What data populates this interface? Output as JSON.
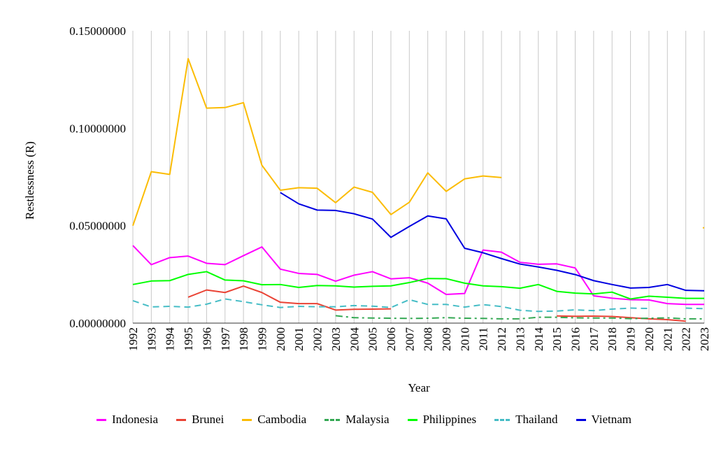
{
  "chart_data": {
    "type": "line",
    "title": "",
    "xlabel": "Year",
    "ylabel": "Restlessness (R)",
    "ylim": [
      0,
      0.15
    ],
    "yticks": [
      "0.00000000",
      "0.05000000",
      "0.10000000",
      "0.15000000"
    ],
    "y_tick_values": [
      0,
      0.05,
      0.1,
      0.15
    ],
    "grid": "vertical",
    "legend_position": "bottom",
    "x": [
      "1992",
      "1993",
      "1994",
      "1995",
      "1996",
      "1997",
      "1998",
      "1999",
      "2000",
      "2001",
      "2002",
      "2003",
      "2004",
      "2005",
      "2006",
      "2007",
      "2008",
      "2009",
      "2010",
      "2011",
      "2012",
      "2013",
      "2014",
      "2015",
      "2016",
      "2017",
      "2018",
      "2019",
      "2020",
      "2021",
      "2022",
      "2023"
    ],
    "series": [
      {
        "name": "Indonesia",
        "color": "#ff00ff",
        "style": "solid",
        "values": [
          0.0398,
          0.03,
          0.0336,
          0.0344,
          0.0307,
          0.03,
          0.0346,
          0.0391,
          0.0277,
          0.0255,
          0.025,
          0.0215,
          0.0246,
          0.0264,
          0.0227,
          0.0233,
          0.0205,
          0.0147,
          0.0152,
          0.0375,
          0.0364,
          0.0312,
          0.0302,
          0.0304,
          0.0283,
          0.014,
          0.0128,
          0.012,
          0.0119,
          0.01,
          0.0096,
          0.0096
        ]
      },
      {
        "name": "Brunei",
        "color": "#ea4335",
        "style": "solid",
        "values": [
          null,
          null,
          null,
          0.0133,
          0.017,
          0.0157,
          0.019,
          0.0157,
          0.0107,
          0.01,
          0.01,
          0.0067,
          0.0071,
          0.0072,
          0.0073,
          null,
          null,
          null,
          null,
          null,
          null,
          null,
          null,
          0.0037,
          0.0035,
          0.0036,
          0.0034,
          0.0028,
          0.0022,
          0.0018,
          0.001,
          null
        ]
      },
      {
        "name": "Cambodia",
        "color": "#fbbc04",
        "style": "solid",
        "values": [
          0.05,
          0.0777,
          0.0763,
          0.1357,
          0.1103,
          0.1106,
          0.1131,
          0.081,
          0.0682,
          0.0695,
          0.0692,
          0.0618,
          0.0698,
          0.0671,
          0.0557,
          0.062,
          0.0771,
          0.0676,
          0.074,
          0.0755,
          0.0747,
          null,
          null,
          null,
          null,
          null,
          null,
          null,
          null,
          null,
          null,
          0.049
        ]
      },
      {
        "name": "Malaysia",
        "color": "#34a853",
        "style": "dashdot",
        "values": [
          null,
          null,
          null,
          null,
          null,
          null,
          null,
          null,
          null,
          null,
          null,
          0.0038,
          0.0028,
          0.0026,
          0.0025,
          0.0024,
          0.0025,
          0.0028,
          0.0025,
          0.0024,
          0.0022,
          0.0022,
          0.003,
          0.003,
          0.0027,
          0.0026,
          0.0026,
          0.0023,
          0.0025,
          0.0027,
          0.0022,
          0.0022
        ]
      },
      {
        "name": "Philippines",
        "color": "#00ff00",
        "style": "solid",
        "values": [
          0.0198,
          0.0216,
          0.0218,
          0.025,
          0.0264,
          0.0221,
          0.0217,
          0.0197,
          0.0198,
          0.0183,
          0.0193,
          0.0191,
          0.0185,
          0.0189,
          0.0191,
          0.0208,
          0.0229,
          0.0228,
          0.0205,
          0.0191,
          0.0187,
          0.0179,
          0.0198,
          0.0163,
          0.0154,
          0.015,
          0.0159,
          0.0124,
          0.0138,
          0.0133,
          0.0127,
          0.0127
        ]
      },
      {
        "name": "Thailand",
        "color": "#46bdc6",
        "style": "dash",
        "values": [
          0.0115,
          0.0083,
          0.0086,
          0.0082,
          0.0097,
          0.0124,
          0.011,
          0.0094,
          0.008,
          0.0086,
          0.0084,
          0.0084,
          0.009,
          0.0087,
          0.008,
          0.012,
          0.0096,
          0.0096,
          0.0082,
          0.0095,
          0.0085,
          0.0066,
          0.006,
          0.0062,
          0.0068,
          0.0064,
          0.0072,
          0.0077,
          0.0075,
          null,
          0.0077,
          0.0074
        ]
      },
      {
        "name": "Vietnam",
        "color": "#0000e0",
        "style": "solid",
        "values": [
          null,
          null,
          null,
          null,
          null,
          null,
          null,
          null,
          0.067,
          0.0612,
          0.058,
          0.0578,
          0.0561,
          0.0534,
          0.044,
          0.0496,
          0.055,
          0.0535,
          0.0384,
          0.0361,
          0.0331,
          0.0303,
          0.0288,
          0.0271,
          0.0249,
          0.0218,
          0.0198,
          0.018,
          0.0183,
          0.0198,
          0.0168,
          0.0166
        ]
      }
    ]
  }
}
